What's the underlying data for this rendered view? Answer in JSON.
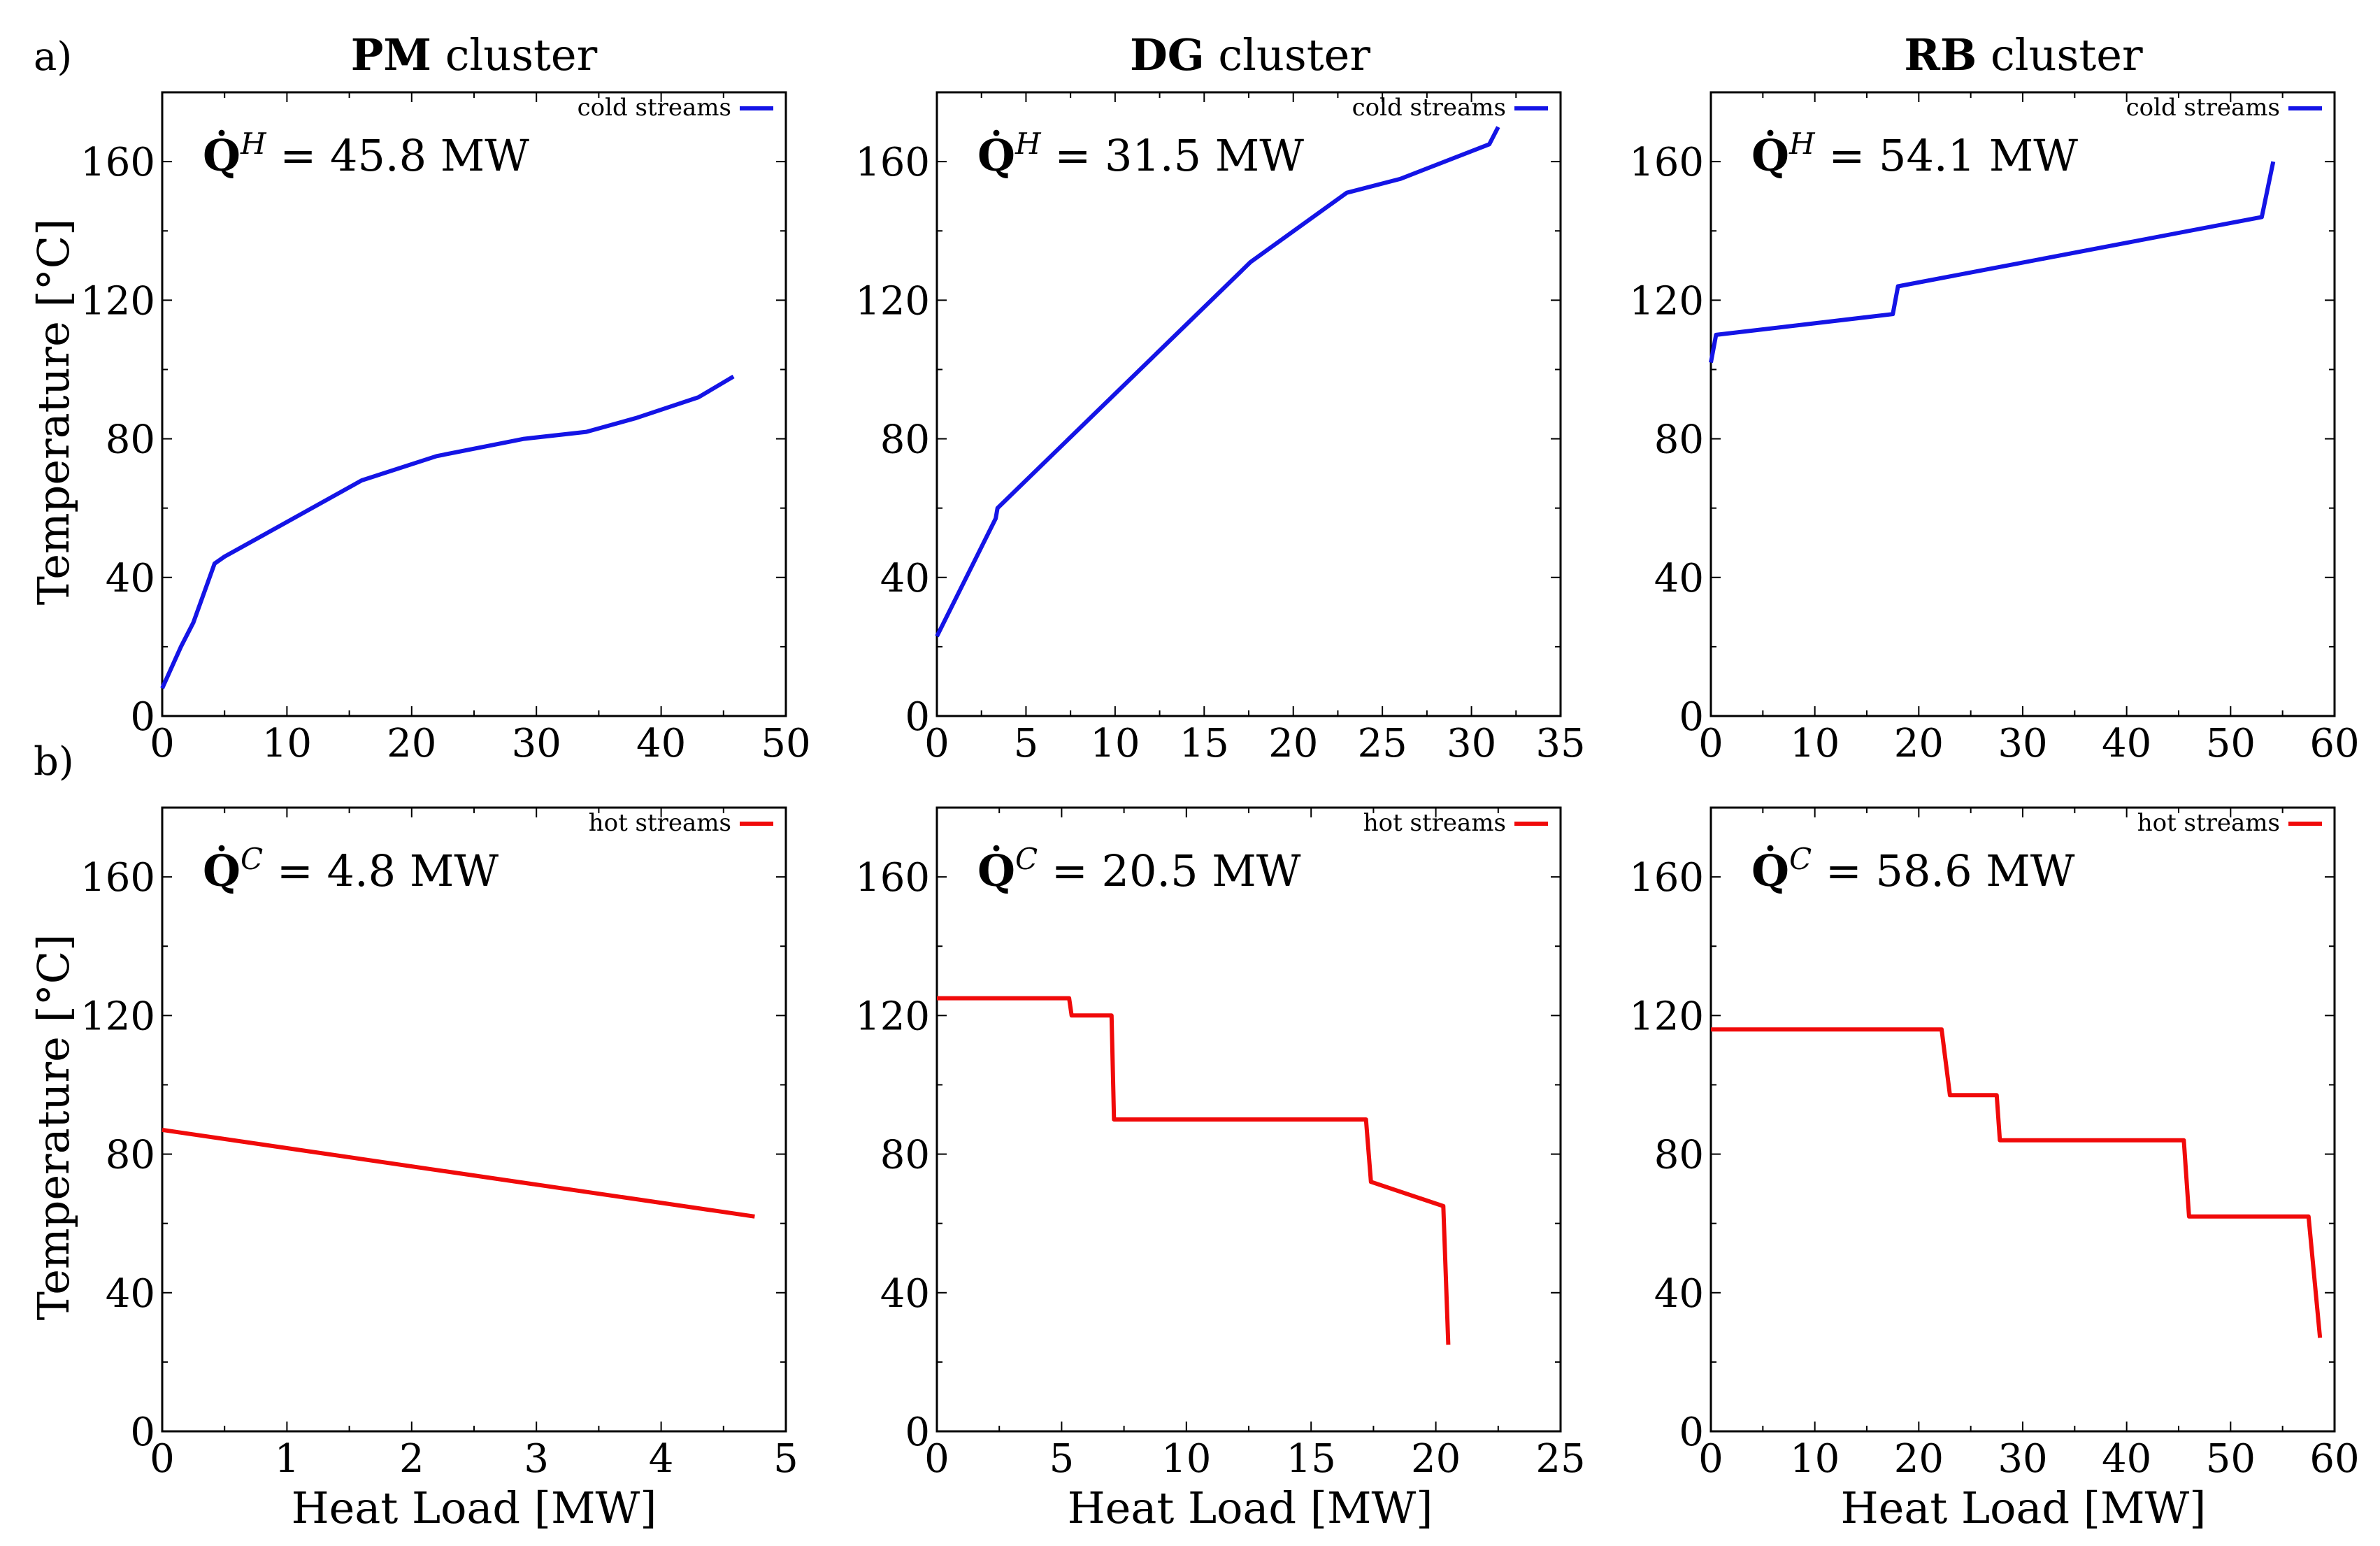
{
  "figure": {
    "row_labels": [
      "a)",
      "b)"
    ],
    "titles": [
      {
        "bold": "PM",
        "rest": " cluster"
      },
      {
        "bold": "DG",
        "rest": " cluster"
      },
      {
        "bold": "RB",
        "rest": " cluster"
      }
    ],
    "xlabel": "Heat Load [MW]",
    "ylabel": "Temperature [°C]"
  },
  "chart_data": [
    {
      "type": "line",
      "row": 0,
      "col": 0,
      "title": "PM cluster",
      "legend": "cold streams",
      "color": "#1414e6",
      "annotation": {
        "sup": "H",
        "value": " = 45.8 MW"
      },
      "xlim": [
        0,
        50
      ],
      "xticks": [
        0,
        10,
        20,
        30,
        40,
        50
      ],
      "ylim": [
        0,
        180
      ],
      "yticks": [
        0,
        40,
        80,
        120,
        160
      ],
      "xlabel": "",
      "ylabel": "Temperature [°C]",
      "points": [
        [
          0,
          8
        ],
        [
          1.5,
          20
        ],
        [
          2.5,
          27
        ],
        [
          4.2,
          44
        ],
        [
          5,
          46
        ],
        [
          10,
          56
        ],
        [
          16,
          68
        ],
        [
          22,
          75
        ],
        [
          29,
          80
        ],
        [
          34,
          82
        ],
        [
          38,
          86
        ],
        [
          43,
          92
        ],
        [
          45.8,
          98
        ]
      ]
    },
    {
      "type": "line",
      "row": 0,
      "col": 1,
      "title": "DG cluster",
      "legend": "cold streams",
      "color": "#1414e6",
      "annotation": {
        "sup": "H",
        "value": " = 31.5 MW"
      },
      "xlim": [
        0,
        35
      ],
      "xticks": [
        0,
        5,
        10,
        15,
        20,
        25,
        30,
        35
      ],
      "ylim": [
        0,
        180
      ],
      "yticks": [
        0,
        40,
        80,
        120,
        160
      ],
      "xlabel": "",
      "ylabel": "",
      "points": [
        [
          0,
          23
        ],
        [
          3.3,
          57
        ],
        [
          3.4,
          60
        ],
        [
          17,
          128
        ],
        [
          17.6,
          131
        ],
        [
          23,
          151
        ],
        [
          26,
          155
        ],
        [
          31,
          165
        ],
        [
          31.2,
          167
        ],
        [
          31.5,
          170
        ]
      ]
    },
    {
      "type": "line",
      "row": 0,
      "col": 2,
      "title": "RB cluster",
      "legend": "cold streams",
      "color": "#1414e6",
      "annotation": {
        "sup": "H",
        "value": " = 54.1 MW"
      },
      "xlim": [
        0,
        60
      ],
      "xticks": [
        0,
        10,
        20,
        30,
        40,
        50,
        60
      ],
      "ylim": [
        0,
        180
      ],
      "yticks": [
        0,
        40,
        80,
        120,
        160
      ],
      "xlabel": "",
      "ylabel": "",
      "points": [
        [
          0,
          102
        ],
        [
          0.5,
          110
        ],
        [
          17.5,
          116
        ],
        [
          18,
          124
        ],
        [
          53,
          144
        ],
        [
          54.1,
          160
        ]
      ]
    },
    {
      "type": "line",
      "row": 1,
      "col": 0,
      "title": "",
      "legend": "hot streams",
      "color": "#f00a0a",
      "annotation": {
        "sup": "C",
        "value": " = 4.8 MW"
      },
      "xlim": [
        0,
        5
      ],
      "xticks": [
        0,
        1,
        2,
        3,
        4,
        5
      ],
      "ylim": [
        0,
        180
      ],
      "yticks": [
        0,
        40,
        80,
        120,
        160
      ],
      "xlabel": "Heat Load [MW]",
      "ylabel": "Temperature [°C]",
      "points": [
        [
          0,
          87
        ],
        [
          4.75,
          62
        ]
      ]
    },
    {
      "type": "line",
      "row": 1,
      "col": 1,
      "title": "",
      "legend": "hot streams",
      "color": "#f00a0a",
      "annotation": {
        "sup": "C",
        "value": " = 20.5 MW"
      },
      "xlim": [
        0,
        25
      ],
      "xticks": [
        0,
        5,
        10,
        15,
        20,
        25
      ],
      "ylim": [
        0,
        180
      ],
      "yticks": [
        0,
        40,
        80,
        120,
        160
      ],
      "xlabel": "Heat Load [MW]",
      "ylabel": "",
      "points": [
        [
          0,
          125
        ],
        [
          5.3,
          125
        ],
        [
          5.4,
          120
        ],
        [
          7.0,
          120
        ],
        [
          7.1,
          90
        ],
        [
          17.2,
          90
        ],
        [
          17.4,
          72
        ],
        [
          20.3,
          65
        ],
        [
          20.5,
          25
        ]
      ]
    },
    {
      "type": "line",
      "row": 1,
      "col": 2,
      "title": "",
      "legend": "hot streams",
      "color": "#f00a0a",
      "annotation": {
        "sup": "C",
        "value": " = 58.6 MW"
      },
      "xlim": [
        0,
        60
      ],
      "xticks": [
        0,
        10,
        20,
        30,
        40,
        50,
        60
      ],
      "ylim": [
        0,
        180
      ],
      "yticks": [
        0,
        40,
        80,
        120,
        160
      ],
      "xlabel": "Heat Load [MW]",
      "ylabel": "",
      "points": [
        [
          0,
          116
        ],
        [
          22.2,
          116
        ],
        [
          23,
          97
        ],
        [
          27.5,
          97
        ],
        [
          27.8,
          84
        ],
        [
          45.5,
          84
        ],
        [
          46,
          62
        ],
        [
          57.5,
          62
        ],
        [
          58.6,
          27
        ]
      ]
    }
  ]
}
